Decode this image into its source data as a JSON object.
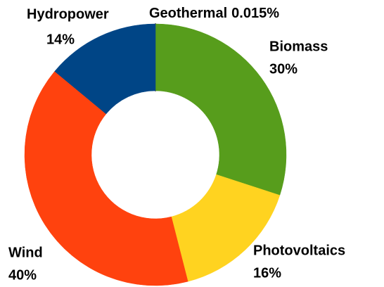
{
  "chart_data": {
    "type": "donut",
    "categories": [
      "Geothermal",
      "Biomass",
      "Photovoltaics",
      "Wind",
      "Hydropower"
    ],
    "values": [
      0.015,
      30,
      16,
      40,
      14
    ],
    "value_labels": [
      "0.015%",
      "30%",
      "16%",
      "40%",
      "14%"
    ],
    "colors": [
      "#3b1a3e",
      "#579d1c",
      "#ffd320",
      "#ff420e",
      "#004586"
    ]
  }
}
